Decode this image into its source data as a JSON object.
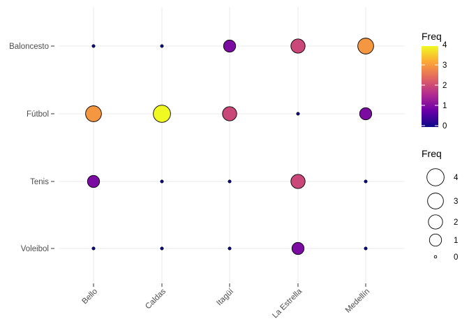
{
  "chart_data": {
    "type": "scatter",
    "title": "",
    "xlabel": "",
    "ylabel": "",
    "x_categories": [
      "Bello",
      "Caldas",
      "Itagüí",
      "La Estrella",
      "Medellín"
    ],
    "y_categories": [
      "Baloncesto",
      "Fútbol",
      "Tenis",
      "Voleibol"
    ],
    "points": [
      {
        "x": "Bello",
        "y": "Baloncesto",
        "freq": 0
      },
      {
        "x": "Caldas",
        "y": "Baloncesto",
        "freq": 0
      },
      {
        "x": "Itagüí",
        "y": "Baloncesto",
        "freq": 1
      },
      {
        "x": "La Estrella",
        "y": "Baloncesto",
        "freq": 2
      },
      {
        "x": "Medellín",
        "y": "Baloncesto",
        "freq": 3
      },
      {
        "x": "Bello",
        "y": "Fútbol",
        "freq": 3
      },
      {
        "x": "Caldas",
        "y": "Fútbol",
        "freq": 4
      },
      {
        "x": "Itagüí",
        "y": "Fútbol",
        "freq": 2
      },
      {
        "x": "La Estrella",
        "y": "Fútbol",
        "freq": 0
      },
      {
        "x": "Medellín",
        "y": "Fútbol",
        "freq": 1
      },
      {
        "x": "Bello",
        "y": "Tenis",
        "freq": 1
      },
      {
        "x": "Caldas",
        "y": "Tenis",
        "freq": 0
      },
      {
        "x": "Itagüí",
        "y": "Tenis",
        "freq": 0
      },
      {
        "x": "La Estrella",
        "y": "Tenis",
        "freq": 2
      },
      {
        "x": "Medellín",
        "y": "Tenis",
        "freq": 0
      },
      {
        "x": "Bello",
        "y": "Voleibol",
        "freq": 0
      },
      {
        "x": "Caldas",
        "y": "Voleibol",
        "freq": 0
      },
      {
        "x": "Itagüí",
        "y": "Voleibol",
        "freq": 0
      },
      {
        "x": "La Estrella",
        "y": "Voleibol",
        "freq": 1
      },
      {
        "x": "Medellín",
        "y": "Voleibol",
        "freq": 0
      }
    ],
    "grid": true,
    "color_legend": {
      "title": "Freq",
      "range": [
        0,
        4
      ],
      "ticks": [
        0,
        1,
        2,
        3,
        4
      ],
      "colors": [
        "#0d0887",
        "#6a00a8",
        "#b12a90",
        "#e16462",
        "#fca636",
        "#f0f921"
      ]
    },
    "size_legend": {
      "title": "Freq",
      "values": [
        4,
        3,
        2,
        1,
        0
      ]
    },
    "legend_position": "right"
  }
}
